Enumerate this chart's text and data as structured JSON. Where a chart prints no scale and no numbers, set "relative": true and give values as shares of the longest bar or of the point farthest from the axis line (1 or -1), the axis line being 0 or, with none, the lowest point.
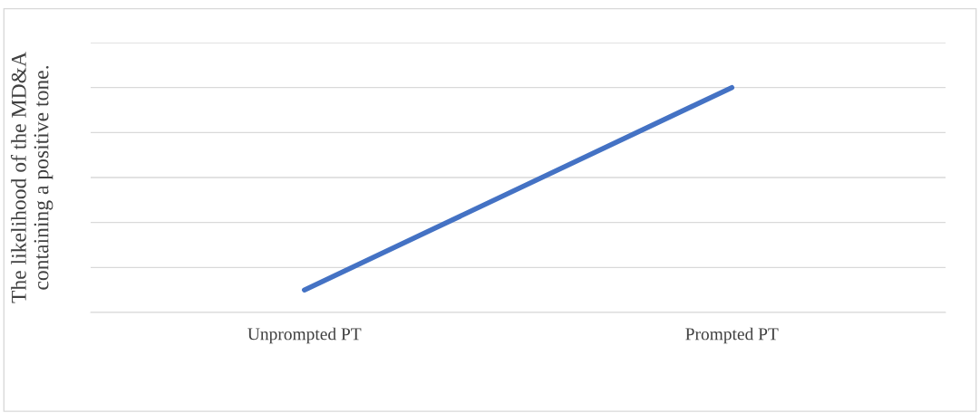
{
  "chart_data": {
    "type": "line",
    "relative": true,
    "ylabel": "The likelihood of the MD&A\ncontaining a positive tone.",
    "categories": [
      "Unprompted PT",
      "Prompted PT"
    ],
    "series": [
      {
        "color": "#4472c4",
        "values": [
          0.1,
          1
        ]
      }
    ],
    "grid": "y",
    "tick_labels": "x",
    "marker": "none",
    "line_style": "solid"
  }
}
